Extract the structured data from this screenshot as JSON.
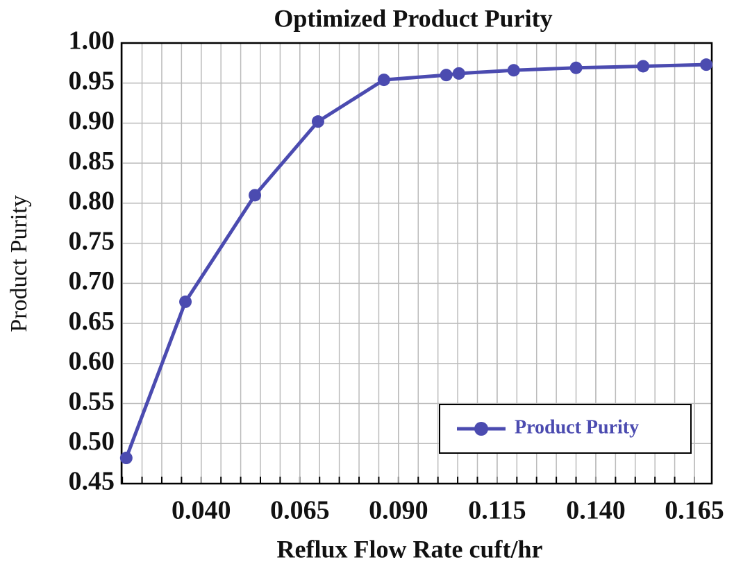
{
  "chart_data": {
    "type": "line",
    "title": "Optimized Product Purity",
    "x_label": "Reflux Flow Rate cuft/hr",
    "y_label": "Product Purity",
    "x": [
      0.021,
      0.036,
      0.0536,
      0.0696,
      0.0863,
      0.1021,
      0.1053,
      0.1192,
      0.135,
      0.152,
      0.168
    ],
    "series": [
      {
        "name": "Product Purity",
        "color": "#4b4bb0",
        "values": [
          0.482,
          0.677,
          0.81,
          0.902,
          0.954,
          0.96,
          0.962,
          0.966,
          0.969,
          0.971,
          0.973
        ]
      }
    ],
    "xlim": [
      0.0198,
      0.1694
    ],
    "xticks": [
      {
        "value": 0.04,
        "label": "0.040"
      },
      {
        "value": 0.065,
        "label": "0.065"
      },
      {
        "value": 0.09,
        "label": "0.090"
      },
      {
        "value": 0.115,
        "label": "0.115"
      },
      {
        "value": 0.14,
        "label": "0.140"
      },
      {
        "value": 0.165,
        "label": "0.165"
      }
    ],
    "ylim": [
      0.45,
      1.0
    ],
    "yticks": [
      {
        "value": 0.45,
        "label": "0.45"
      },
      {
        "value": 0.5,
        "label": "0.50"
      },
      {
        "value": 0.55,
        "label": "0.55"
      },
      {
        "value": 0.6,
        "label": "0.60"
      },
      {
        "value": 0.65,
        "label": "0.65"
      },
      {
        "value": 0.7,
        "label": "0.70"
      },
      {
        "value": 0.75,
        "label": "0.75"
      },
      {
        "value": 0.8,
        "label": "0.80"
      },
      {
        "value": 0.85,
        "label": "0.85"
      },
      {
        "value": 0.9,
        "label": "0.90"
      },
      {
        "value": 0.95,
        "label": "0.95"
      },
      {
        "value": 1.0,
        "label": "1.00"
      }
    ],
    "grid": true,
    "legend": "lower right"
  }
}
